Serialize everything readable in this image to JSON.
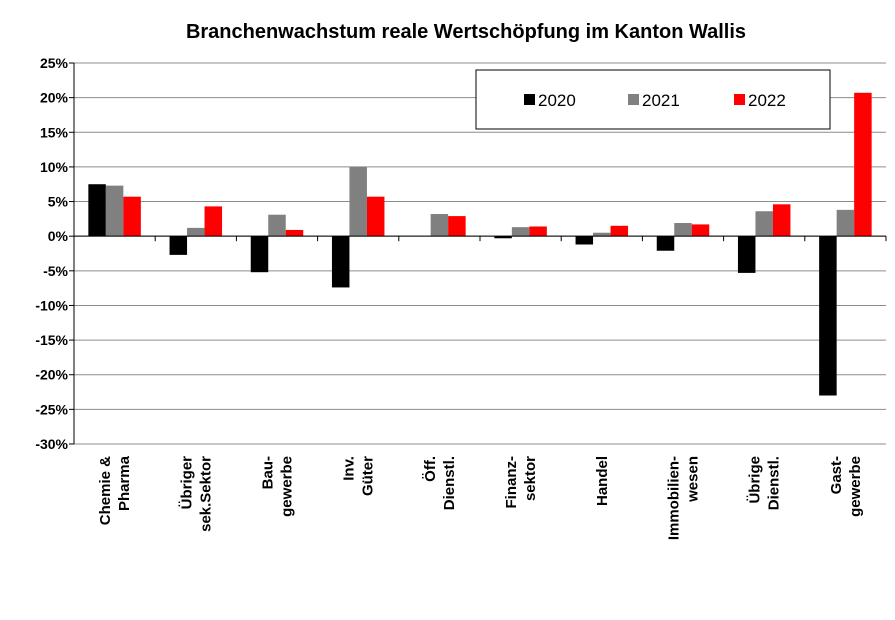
{
  "chart_data": {
    "type": "bar",
    "title": "Branchenwachstum reale Wertschöpfung im Kanton Wallis",
    "xlabel": "",
    "ylabel": "",
    "ylim": [
      -30,
      25
    ],
    "y_ticks": [
      25,
      20,
      15,
      10,
      5,
      0,
      -5,
      -10,
      -15,
      -20,
      -25,
      -30
    ],
    "y_tick_labels": [
      "25%",
      "20%",
      "15%",
      "10%",
      "5%",
      "0%",
      "-5%",
      "-10%",
      "-15%",
      "-20%",
      "-25%",
      "-30%"
    ],
    "grid": true,
    "legend_position": "top-right",
    "categories": [
      [
        "Chemie &",
        "Pharma"
      ],
      [
        "Übriger",
        "sek.Sektor"
      ],
      [
        "Bau-",
        "gewerbe"
      ],
      [
        "Inv.",
        "Güter"
      ],
      [
        "Öff.",
        "Dienstl."
      ],
      [
        "Finanz-",
        "sektor"
      ],
      [
        "Handel"
      ],
      [
        "Immobilien-",
        "wesen"
      ],
      [
        "Übrige",
        "Dienstl."
      ],
      [
        "Gast-",
        "gewerbe"
      ]
    ],
    "series": [
      {
        "name": "2020",
        "color": "#000000",
        "values": [
          7.5,
          -2.7,
          -5.2,
          -7.4,
          0,
          -0.3,
          -1.2,
          -2.1,
          -5.3,
          -23.0
        ]
      },
      {
        "name": "2021",
        "color": "#808080",
        "values": [
          7.3,
          1.2,
          3.1,
          10.0,
          3.2,
          1.3,
          0.5,
          1.9,
          3.6,
          3.8
        ]
      },
      {
        "name": "2022",
        "color": "#ff0000",
        "values": [
          5.7,
          4.3,
          0.9,
          5.7,
          2.9,
          1.4,
          1.5,
          1.7,
          4.6,
          20.7
        ]
      }
    ]
  }
}
